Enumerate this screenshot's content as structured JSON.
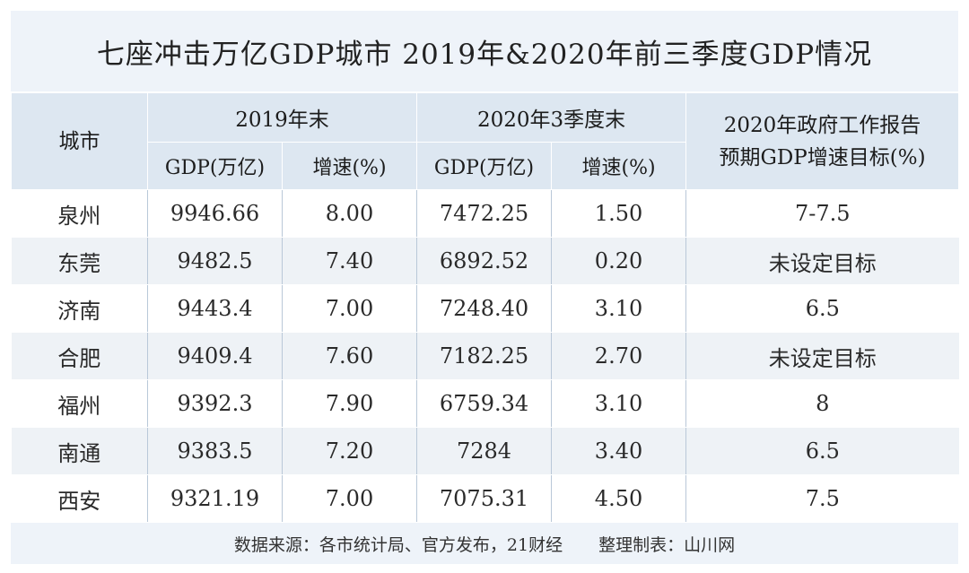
{
  "title": "七座冲击万亿GDP城市 2019年&2020年前三季度GDP情况",
  "header": {
    "city": "城市",
    "group_2019": "2019年末",
    "group_2020": "2020年3季度末",
    "target_line1": "2020年政府工作报告",
    "target_line2": "预期GDP增速目标(%)",
    "gdp_2019": "GDP(万亿)",
    "growth_2019": "增速(%)",
    "gdp_2020": "GDP(万亿)",
    "growth_2020": "增速(%)"
  },
  "rows": [
    {
      "city": "泉州",
      "gdp2019": "9946.66",
      "growth2019": "8.00",
      "gdp2020": "7472.25",
      "growth2020": "1.50",
      "target": "7-7.5"
    },
    {
      "city": "东莞",
      "gdp2019": "9482.5",
      "growth2019": "7.40",
      "gdp2020": "6892.52",
      "growth2020": "0.20",
      "target": "未设定目标"
    },
    {
      "city": "济南",
      "gdp2019": "9443.4",
      "growth2019": "7.00",
      "gdp2020": "7248.40",
      "growth2020": "3.10",
      "target": "6.5"
    },
    {
      "city": "合肥",
      "gdp2019": "9409.4",
      "growth2019": "7.60",
      "gdp2020": "7182.25",
      "growth2020": "2.70",
      "target": "未设定目标"
    },
    {
      "city": "福州",
      "gdp2019": "9392.3",
      "growth2019": "7.90",
      "gdp2020": "6759.34",
      "growth2020": "3.10",
      "target": "8"
    },
    {
      "city": "南通",
      "gdp2019": "9383.5",
      "growth2019": "7.20",
      "gdp2020": "7284",
      "growth2020": "3.40",
      "target": "6.5"
    },
    {
      "city": "西安",
      "gdp2019": "9321.19",
      "growth2019": "7.00",
      "gdp2020": "7075.31",
      "growth2020": "4.50",
      "target": "7.5"
    }
  ],
  "footer": {
    "source": "数据来源：各市统计局、官方发布，21财经",
    "compiler": "整理制表：山川网"
  }
}
